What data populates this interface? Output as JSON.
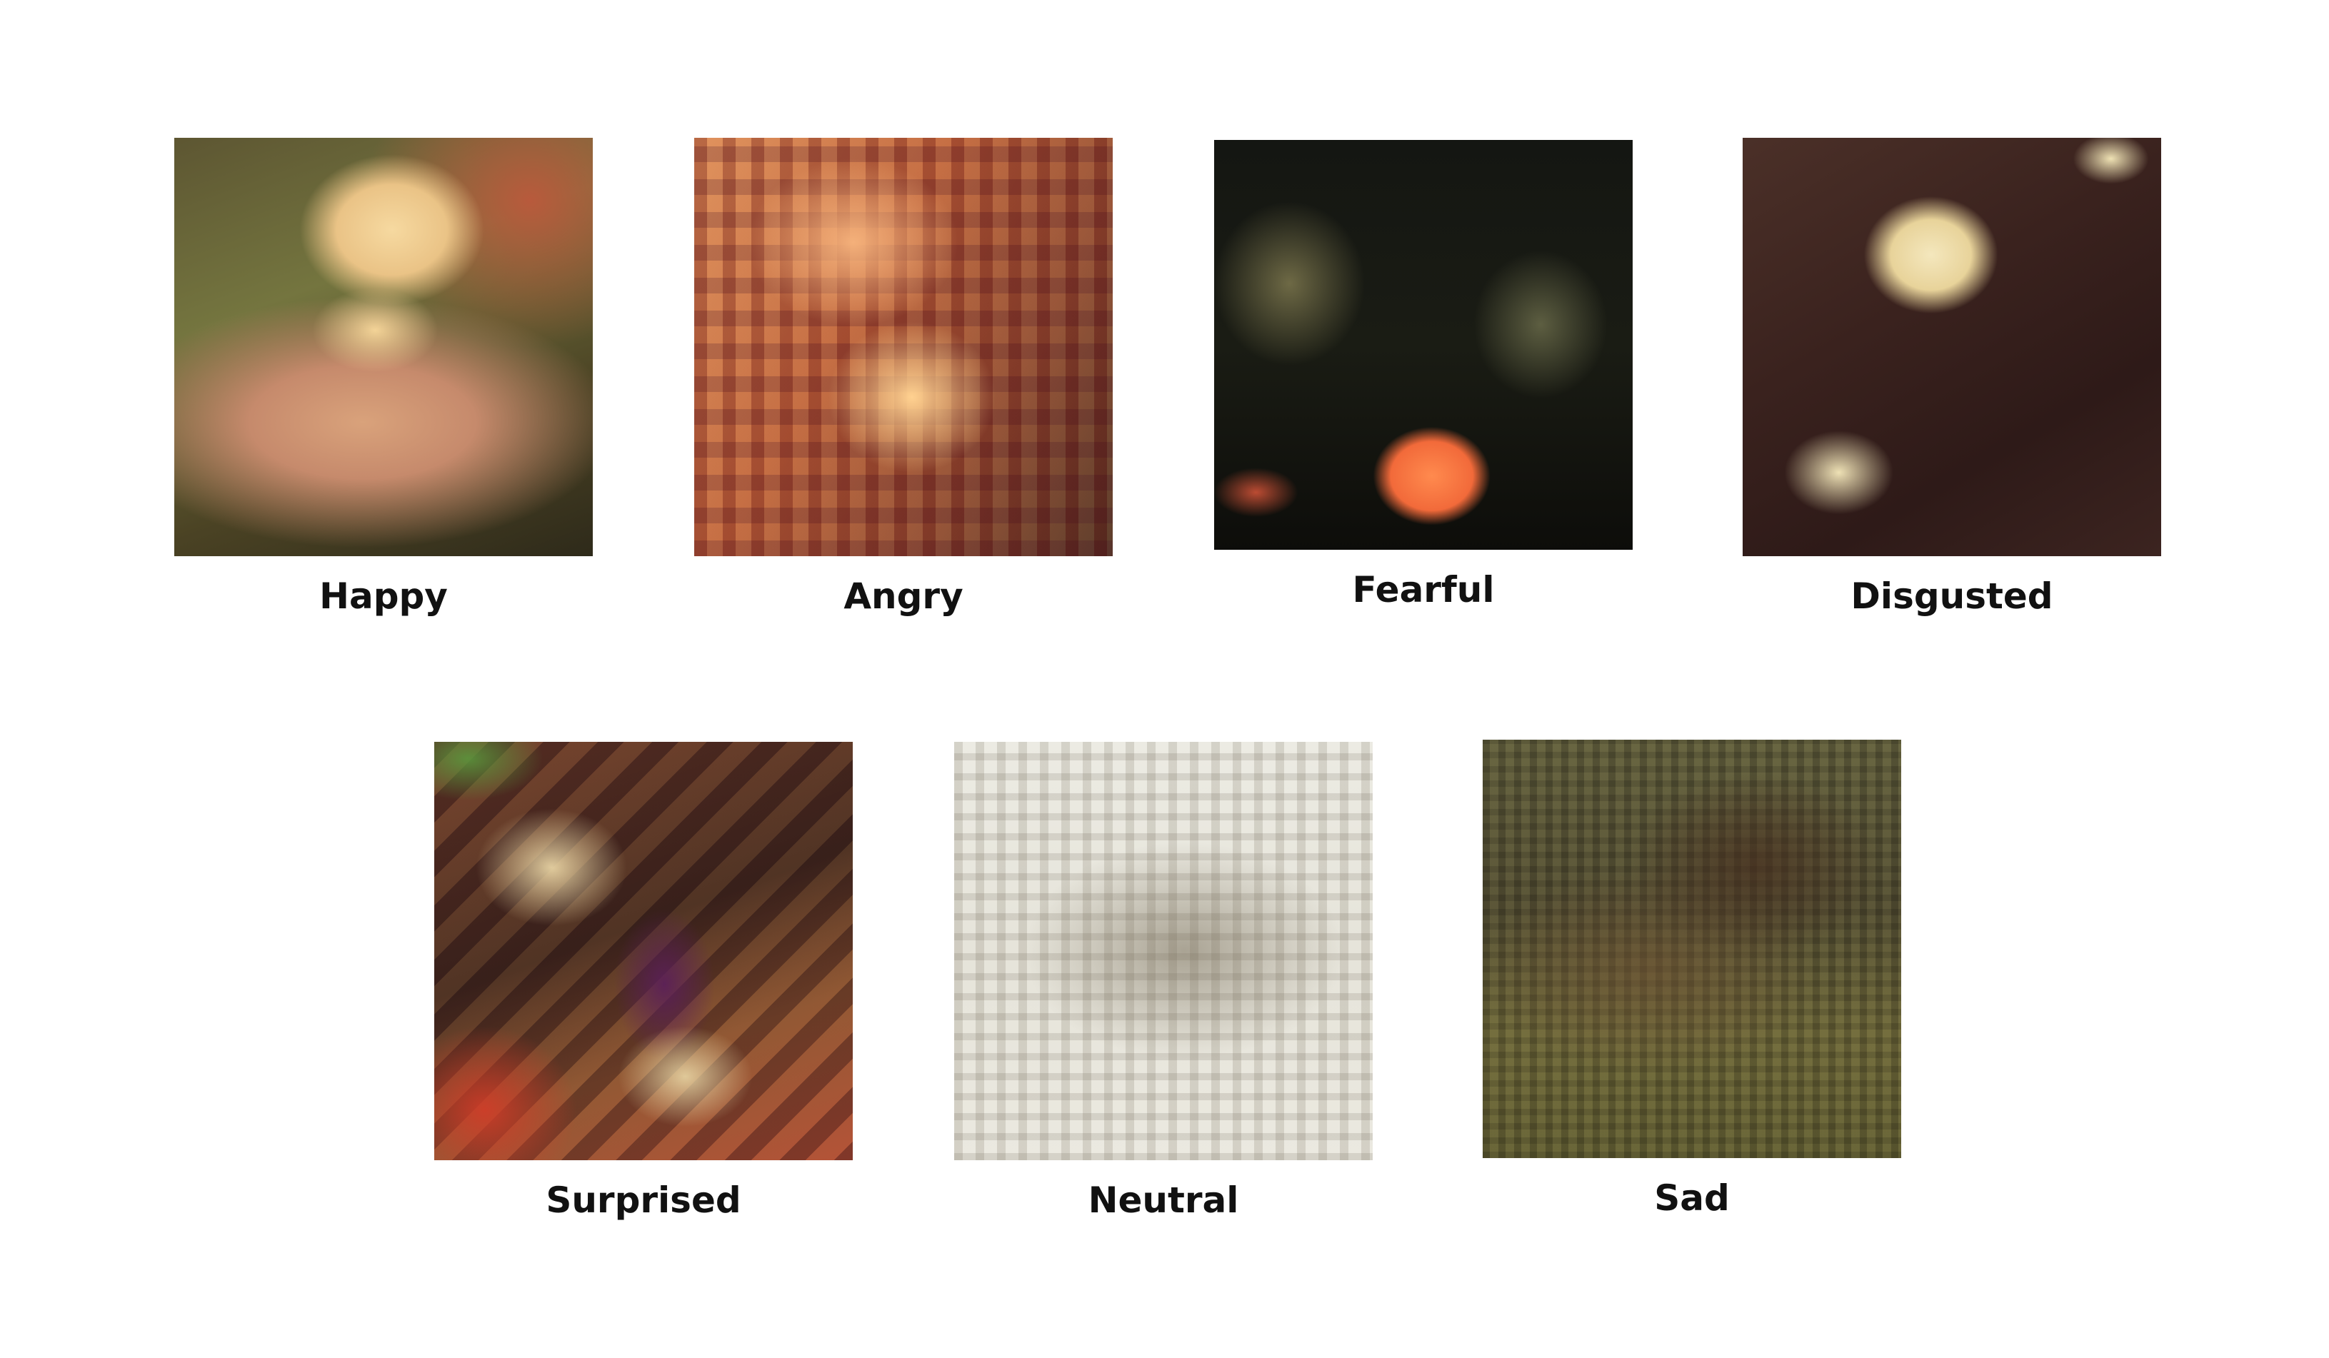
{
  "figure": {
    "panels": [
      {
        "label": "Happy",
        "image": "happy-artwork"
      },
      {
        "label": "Angry",
        "image": "angry-artwork"
      },
      {
        "label": "Fearful",
        "image": "fearful-artwork"
      },
      {
        "label": "Disgusted",
        "image": "disgusted-artwork"
      },
      {
        "label": "Surprised",
        "image": "surprised-artwork"
      },
      {
        "label": "Neutral",
        "image": "neutral-artwork"
      },
      {
        "label": "Sad",
        "image": "sad-artwork"
      }
    ]
  }
}
